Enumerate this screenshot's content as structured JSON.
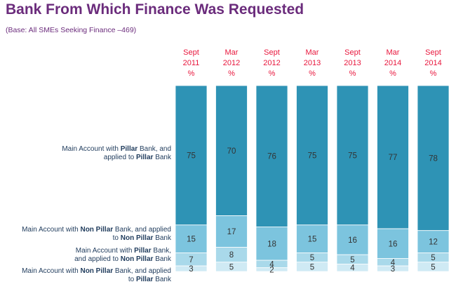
{
  "title": "Bank From Which Finance Was Requested",
  "subtitle": "(Base: All SMEs Seeking Finance –469)",
  "row_labels": [
    {
      "pre": "Main Account with ",
      "bold1": "Pillar",
      "mid": " Bank, and",
      "br": "applied to ",
      "bold2": "Pillar",
      "post": " Bank"
    },
    {
      "pre": "Main Account with ",
      "bold1": "Non Pillar",
      "mid": " Bank, and applied",
      "br": "to ",
      "bold2": "Non Pillar",
      "post": " Bank"
    },
    {
      "pre": "Main Account with ",
      "bold1": "Pillar",
      "mid": " Bank,",
      "br": "and applied to ",
      "bold2": "Non Pillar",
      "post": " Bank"
    },
    {
      "pre": "Main Account with ",
      "bold1": "Non Pillar",
      "mid": " Bank, and applied",
      "br": "to ",
      "bold2": "Pillar",
      "post": " Bank"
    }
  ],
  "colors": {
    "s1": "#2e93b5",
    "s2": "#7cc4de",
    "s3": "#a9d9ea",
    "s4": "#cfeaf4",
    "category_text": "#e8163c",
    "title": "#6b2c7c"
  },
  "chart_data": {
    "type": "bar",
    "stacked": true,
    "percent_stacked": true,
    "categories": [
      [
        "Sept",
        "2011",
        "%"
      ],
      [
        "Mar",
        "2012",
        "%"
      ],
      [
        "Sept",
        "2012",
        "%"
      ],
      [
        "Mar",
        "2013",
        "%"
      ],
      [
        "Sept",
        "2013",
        "%"
      ],
      [
        "Mar",
        "2014",
        "%"
      ],
      [
        "Sept",
        "2014",
        "%"
      ]
    ],
    "series": [
      {
        "name": "Main Account with Pillar Bank, and applied to Pillar Bank",
        "values": [
          75,
          70,
          76,
          75,
          75,
          77,
          78
        ]
      },
      {
        "name": "Main Account with Non Pillar Bank, and applied to Non Pillar Bank",
        "values": [
          15,
          17,
          18,
          15,
          16,
          16,
          12
        ]
      },
      {
        "name": "Main Account with Pillar Bank, and applied to Non Pillar Bank",
        "values": [
          7,
          8,
          4,
          5,
          5,
          4,
          5
        ]
      },
      {
        "name": "Main Account with Non Pillar Bank, and applied to Pillar Bank",
        "values": [
          3,
          5,
          2,
          5,
          4,
          3,
          5
        ]
      }
    ]
  }
}
